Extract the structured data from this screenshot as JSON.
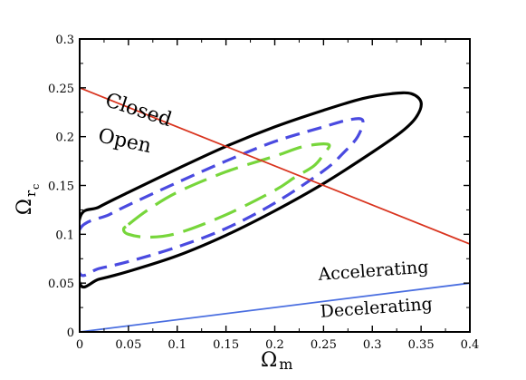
{
  "chart_data": {
    "type": "line",
    "xlabel": {
      "symbol": "Ω",
      "subscript": "m"
    },
    "ylabel": {
      "symbol": "Ω",
      "subscript": "r",
      "subsubscript": "c"
    },
    "xlim": [
      0,
      0.4
    ],
    "ylim": [
      0,
      0.3
    ],
    "x_ticks": [
      "0",
      "0.05",
      "0.1",
      "0.15",
      "0.2",
      "0.25",
      "0.3",
      "0.35",
      "0.4"
    ],
    "y_ticks": [
      "0",
      "0.05",
      "0.1",
      "0.15",
      "0.2",
      "0.25",
      "0.3"
    ],
    "grid": false,
    "series": [
      {
        "kind": "contour",
        "style": "solid",
        "color": "#000000",
        "points": [
          [
            0.0,
            0.116
          ],
          [
            0.02,
            0.128
          ],
          [
            0.05,
            0.143
          ],
          [
            0.1,
            0.167
          ],
          [
            0.15,
            0.19
          ],
          [
            0.2,
            0.21
          ],
          [
            0.25,
            0.227
          ],
          [
            0.29,
            0.239
          ],
          [
            0.32,
            0.244
          ],
          [
            0.34,
            0.244
          ],
          [
            0.35,
            0.235
          ],
          [
            0.345,
            0.22
          ],
          [
            0.33,
            0.205
          ],
          [
            0.3,
            0.184
          ],
          [
            0.25,
            0.152
          ],
          [
            0.2,
            0.124
          ],
          [
            0.15,
            0.099
          ],
          [
            0.1,
            0.078
          ],
          [
            0.05,
            0.062
          ],
          [
            0.02,
            0.054
          ],
          [
            0.0,
            0.05
          ]
        ]
      },
      {
        "kind": "contour",
        "style": "dashed",
        "color": "#4a4ae0",
        "points": [
          [
            0.0,
            0.105
          ],
          [
            0.03,
            0.12
          ],
          [
            0.05,
            0.13
          ],
          [
            0.1,
            0.153
          ],
          [
            0.15,
            0.175
          ],
          [
            0.2,
            0.195
          ],
          [
            0.25,
            0.21
          ],
          [
            0.275,
            0.217
          ],
          [
            0.29,
            0.217
          ],
          [
            0.285,
            0.2
          ],
          [
            0.27,
            0.183
          ],
          [
            0.25,
            0.165
          ],
          [
            0.2,
            0.132
          ],
          [
            0.15,
            0.106
          ],
          [
            0.1,
            0.087
          ],
          [
            0.05,
            0.072
          ],
          [
            0.02,
            0.065
          ],
          [
            0.0,
            0.06
          ]
        ]
      },
      {
        "kind": "contour",
        "style": "long-dashed",
        "color": "#77d63b",
        "points": [
          [
            0.05,
            0.11
          ],
          [
            0.07,
            0.125
          ],
          [
            0.1,
            0.143
          ],
          [
            0.15,
            0.164
          ],
          [
            0.2,
            0.18
          ],
          [
            0.23,
            0.19
          ],
          [
            0.255,
            0.192
          ],
          [
            0.25,
            0.182
          ],
          [
            0.24,
            0.17
          ],
          [
            0.22,
            0.158
          ],
          [
            0.2,
            0.145
          ],
          [
            0.15,
            0.12
          ],
          [
            0.1,
            0.101
          ],
          [
            0.07,
            0.097
          ],
          [
            0.05,
            0.1
          ],
          [
            0.045,
            0.105
          ]
        ]
      },
      {
        "kind": "boundary",
        "style": "solid",
        "color": "#d9341f",
        "points": [
          [
            0.0,
            0.25
          ],
          [
            0.4,
            0.09
          ]
        ]
      },
      {
        "kind": "boundary",
        "style": "solid",
        "color": "#4a6ee0",
        "points": [
          [
            0.0,
            0.0
          ],
          [
            0.4,
            0.05
          ]
        ]
      }
    ],
    "annotations": [
      {
        "text": "Closed",
        "x": 0.025,
        "y": 0.232,
        "rotate": 18,
        "size": "large"
      },
      {
        "text": "Open",
        "x": 0.018,
        "y": 0.195,
        "rotate": 12,
        "size": "large"
      },
      {
        "text": "Accelerating",
        "x": 0.245,
        "y": 0.053,
        "rotate": -4,
        "size": "medium"
      },
      {
        "text": "Decelerating",
        "x": 0.247,
        "y": 0.015,
        "rotate": -4,
        "size": "medium"
      }
    ]
  }
}
